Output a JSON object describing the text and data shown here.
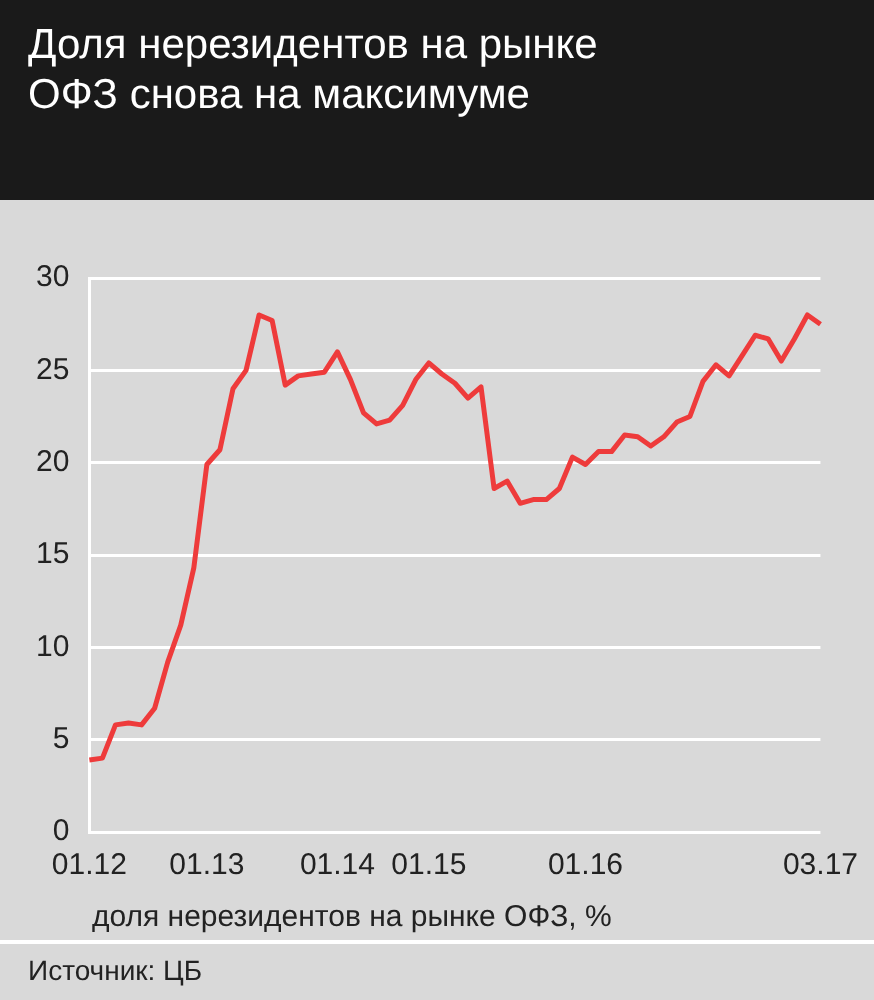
{
  "chart_data": {
    "type": "line",
    "title": "Доля нерезидентов на рынке ОФЗ снова на максимуме",
    "xlabel": "доля нерезидентов на рынке ОФЗ, %",
    "annotations": [
      "Источник: ЦБ"
    ],
    "categories": [
      "01.12",
      null,
      null,
      null,
      null,
      null,
      null,
      null,
      null,
      "01.13",
      null,
      null,
      null,
      null,
      null,
      null,
      null,
      null,
      null,
      "01.14",
      null,
      null,
      null,
      null,
      null,
      null,
      "01.15",
      null,
      null,
      null,
      null,
      null,
      null,
      null,
      null,
      null,
      null,
      null,
      "01.16",
      null,
      null,
      null,
      null,
      null,
      null,
      null,
      null,
      null,
      null,
      null,
      null,
      null,
      null,
      null,
      null,
      null,
      "03.17"
    ],
    "series": [
      {
        "color": "#ee3b3b",
        "values": [
          3.9,
          4.0,
          5.8,
          5.9,
          5.8,
          6.7,
          9.2,
          11.2,
          14.3,
          19.9,
          20.7,
          24.0,
          25.0,
          28.0,
          27.7,
          24.2,
          24.7,
          24.8,
          24.9,
          26.0,
          24.5,
          22.7,
          22.1,
          22.3,
          23.1,
          24.5,
          25.4,
          24.8,
          24.3,
          23.5,
          24.1,
          18.6,
          19.0,
          17.8,
          18.0,
          18.0,
          18.6,
          20.3,
          19.9,
          20.6,
          20.6,
          21.5,
          21.4,
          20.9,
          21.4,
          22.2,
          22.5,
          24.4,
          25.3,
          24.7,
          25.8,
          26.9,
          26.7,
          25.5,
          26.7,
          28.0,
          27.5
        ]
      }
    ],
    "ylim": [
      0,
      30
    ],
    "yticks": [
      0,
      5,
      10,
      15,
      20,
      25,
      30
    ],
    "grid": "y",
    "legend": false,
    "marker": "none",
    "line_style": "solid"
  }
}
